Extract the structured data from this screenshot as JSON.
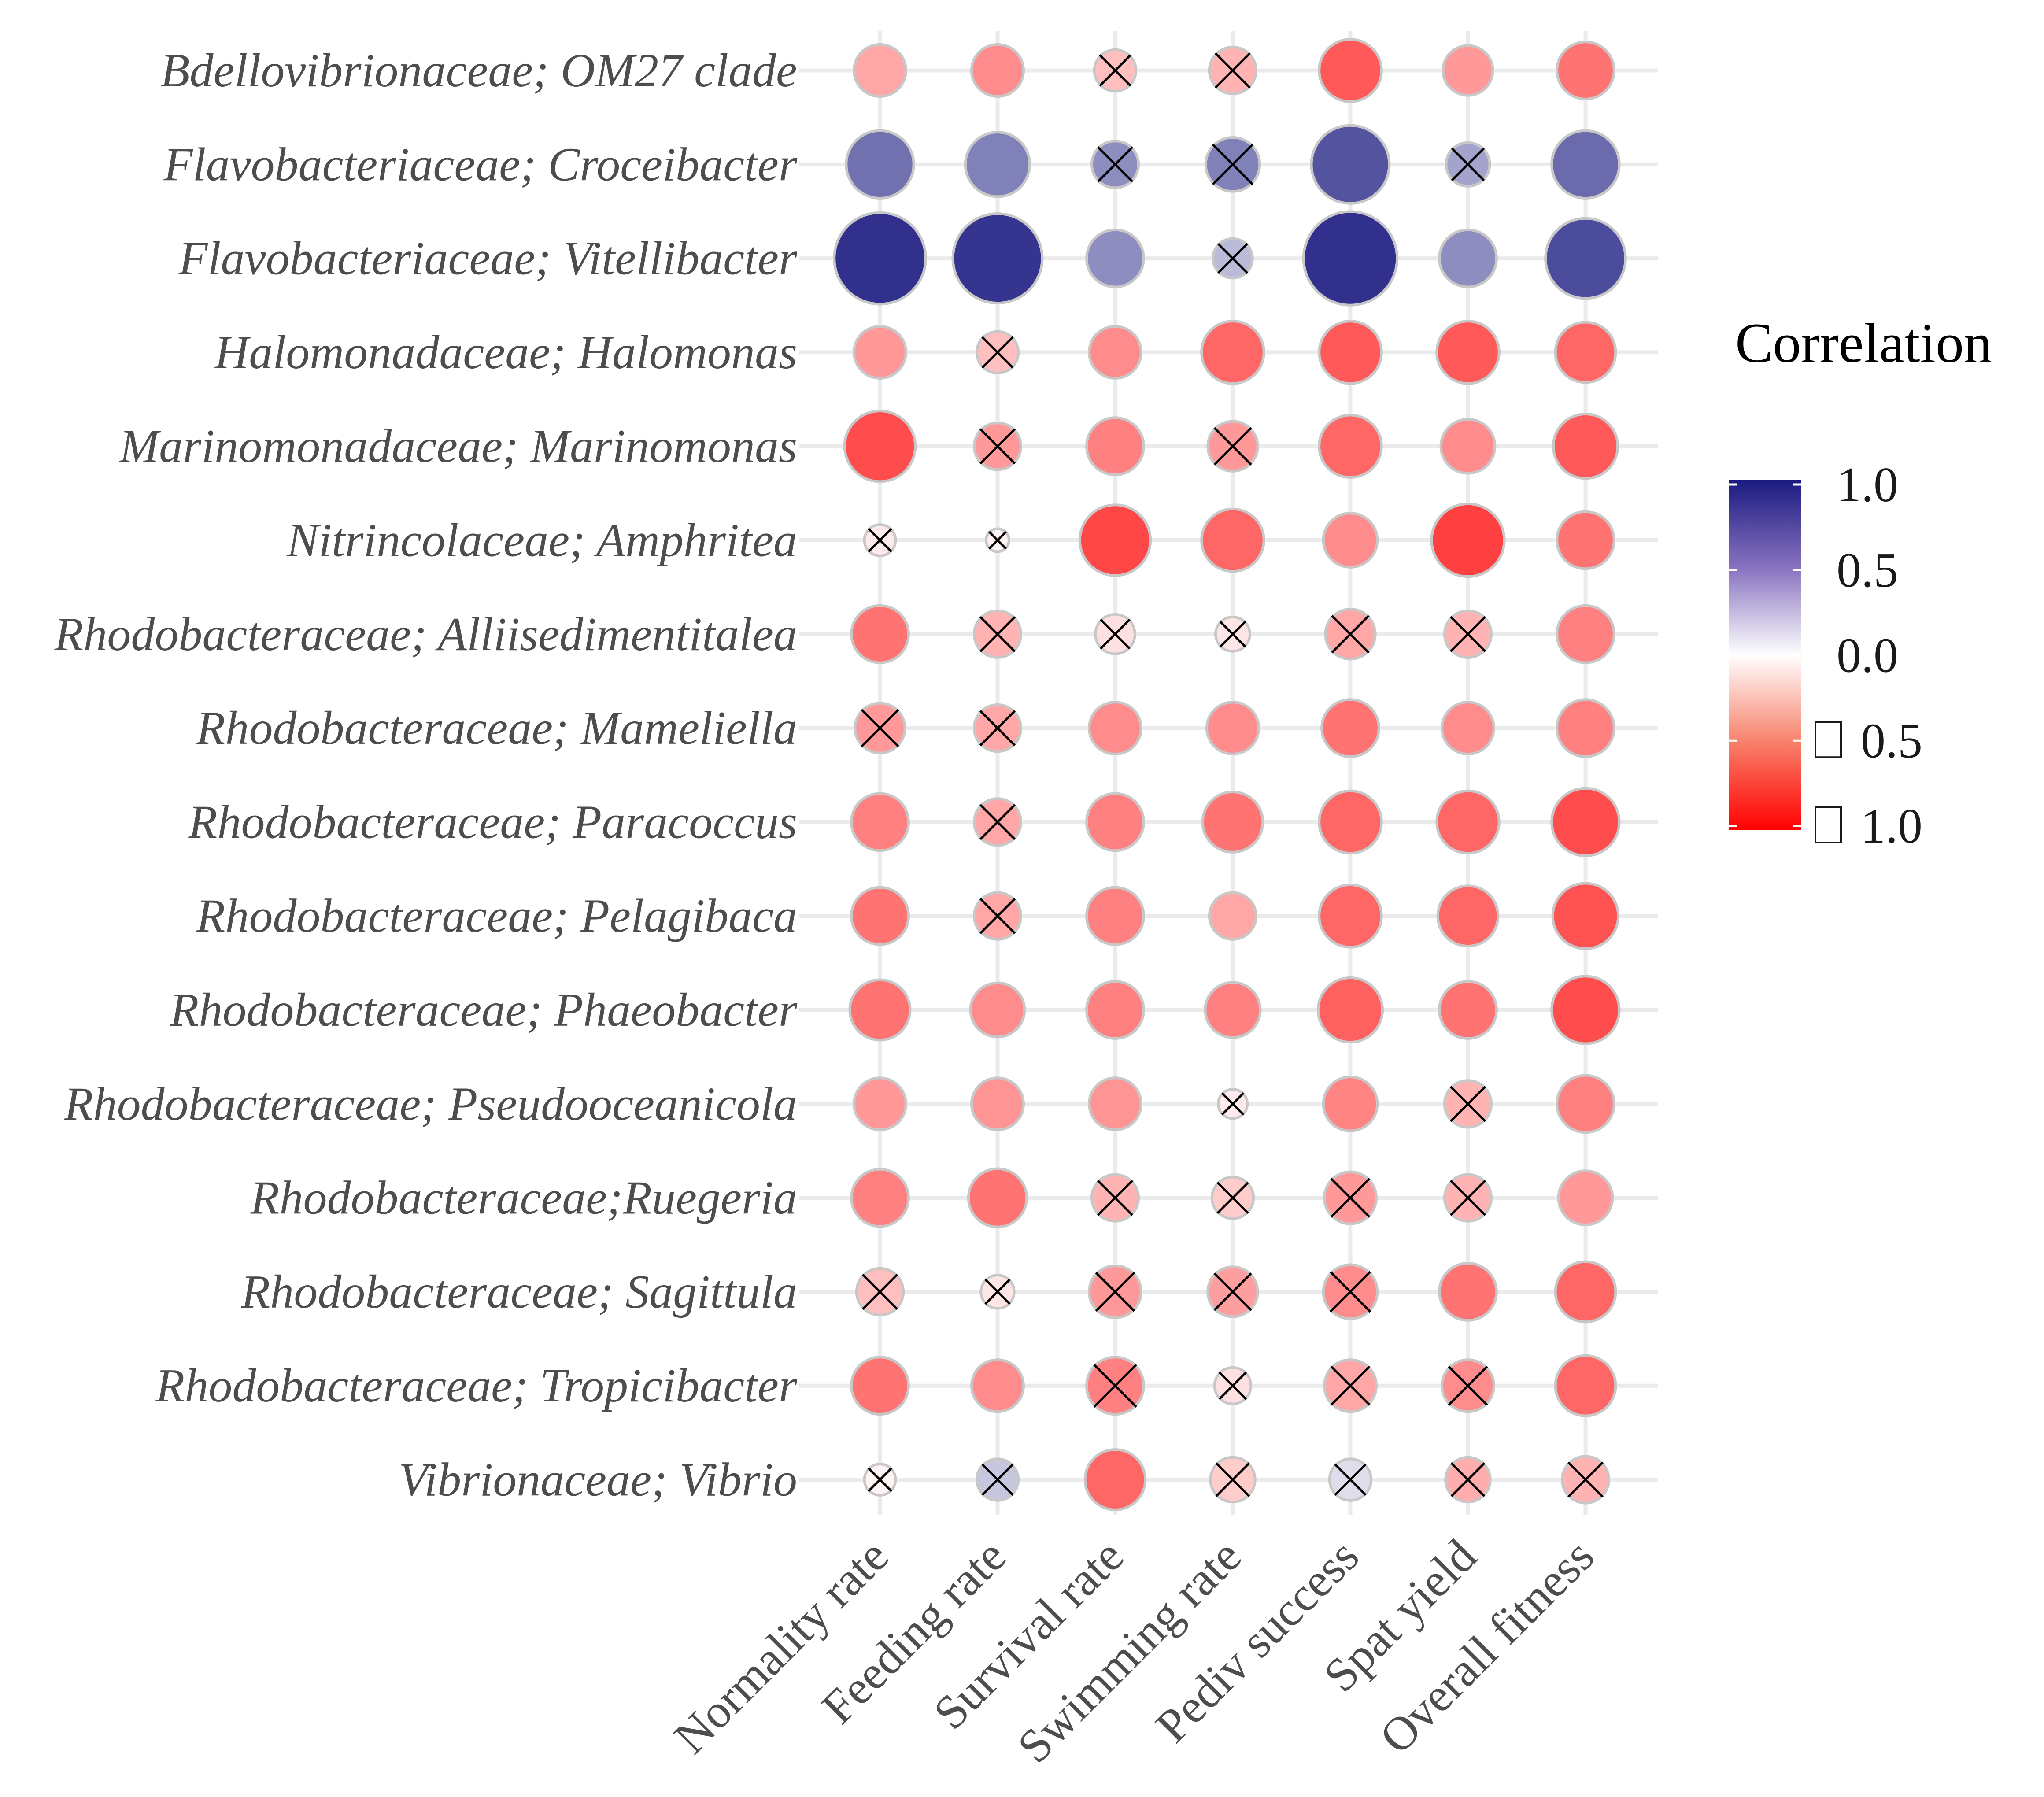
{
  "chart_data": {
    "type": "correlation-dot-matrix",
    "legend_title": "Correlation",
    "color_scale": {
      "domain": [
        -1,
        0,
        1
      ],
      "colors": [
        "#ff0000",
        "#ffffff",
        "#1a1a80"
      ],
      "tick_labels": [
        "1.0",
        "0.5",
        "0.0",
        "□ 0.5",
        "□ 1.0"
      ]
    },
    "rows": [
      "Bdellovibrionaceae; OM27 clade",
      "Flavobacteriaceae; Croceibacter",
      "Flavobacteriaceae; Vitellibacter",
      "Halomonadaceae; Halomonas",
      "Marinomonadaceae; Marinomonas",
      "Nitrincolaceae; Amphritea",
      "Rhodobacteraceae; Alliisedimentitalea",
      "Rhodobacteraceae; Mameliella",
      "Rhodobacteraceae; Paracoccus",
      "Rhodobacteraceae; Pelagibaca",
      "Rhodobacteraceae; Phaeobacter",
      "Rhodobacteraceae; Pseudooceanicola",
      "Rhodobacteraceae;Ruegeria",
      "Rhodobacteraceae; Sagittula",
      "Rhodobacteraceae; Tropicibacter",
      "Vibrionaceae; Vibrio"
    ],
    "columns": [
      "Normality rate",
      "Feeding rate",
      "Survival rate",
      "Swimming rate",
      "Pediv success",
      "Spat yield",
      "Overall fitness"
    ],
    "values": [
      [
        -0.35,
        -0.45,
        -0.25,
        -0.3,
        -0.65,
        -0.4,
        -0.55
      ],
      [
        0.62,
        0.55,
        0.5,
        0.55,
        0.75,
        0.4,
        0.65
      ],
      [
        0.9,
        0.88,
        0.5,
        0.3,
        0.9,
        0.5,
        0.78
      ],
      [
        -0.4,
        -0.25,
        -0.45,
        -0.6,
        -0.65,
        -0.65,
        -0.6
      ],
      [
        -0.7,
        -0.4,
        -0.5,
        -0.4,
        -0.6,
        -0.45,
        -0.65
      ],
      [
        -0.08,
        -0.05,
        -0.72,
        -0.6,
        -0.45,
        -0.75,
        -0.55
      ],
      [
        -0.55,
        -0.3,
        -0.12,
        -0.1,
        -0.35,
        -0.3,
        -0.5
      ],
      [
        -0.4,
        -0.35,
        -0.45,
        -0.45,
        -0.55,
        -0.45,
        -0.5
      ],
      [
        -0.5,
        -0.35,
        -0.5,
        -0.55,
        -0.6,
        -0.6,
        -0.7
      ],
      [
        -0.55,
        -0.35,
        -0.5,
        -0.35,
        -0.6,
        -0.6,
        -0.68
      ],
      [
        -0.55,
        -0.45,
        -0.5,
        -0.5,
        -0.62,
        -0.55,
        -0.7
      ],
      [
        -0.4,
        -0.42,
        -0.42,
        -0.08,
        -0.48,
        -0.3,
        -0.5
      ],
      [
        -0.5,
        -0.55,
        -0.3,
        -0.2,
        -0.4,
        -0.3,
        -0.4
      ],
      [
        -0.25,
        -0.1,
        -0.4,
        -0.38,
        -0.45,
        -0.55,
        -0.6
      ],
      [
        -0.55,
        -0.45,
        -0.5,
        -0.12,
        -0.35,
        -0.45,
        -0.6
      ],
      [
        -0.04,
        0.25,
        -0.6,
        -0.2,
        0.15,
        -0.32,
        -0.3
      ]
    ],
    "sizes": [
      [
        0.5,
        0.5,
        0.4,
        0.45,
        0.6,
        0.48,
        0.55
      ],
      [
        0.65,
        0.62,
        0.45,
        0.52,
        0.75,
        0.42,
        0.65
      ],
      [
        0.88,
        0.86,
        0.55,
        0.38,
        0.9,
        0.55,
        0.77
      ],
      [
        0.5,
        0.4,
        0.5,
        0.6,
        0.6,
        0.6,
        0.58
      ],
      [
        0.68,
        0.45,
        0.55,
        0.48,
        0.6,
        0.52,
        0.62
      ],
      [
        0.3,
        0.22,
        0.68,
        0.6,
        0.52,
        0.7,
        0.55
      ],
      [
        0.55,
        0.45,
        0.38,
        0.33,
        0.48,
        0.45,
        0.55
      ],
      [
        0.48,
        0.45,
        0.5,
        0.5,
        0.55,
        0.5,
        0.55
      ],
      [
        0.55,
        0.45,
        0.55,
        0.58,
        0.6,
        0.6,
        0.65
      ],
      [
        0.55,
        0.45,
        0.55,
        0.45,
        0.6,
        0.58,
        0.63
      ],
      [
        0.58,
        0.52,
        0.55,
        0.53,
        0.62,
        0.55,
        0.65
      ],
      [
        0.5,
        0.5,
        0.5,
        0.28,
        0.52,
        0.45,
        0.55
      ],
      [
        0.55,
        0.56,
        0.45,
        0.4,
        0.5,
        0.45,
        0.52
      ],
      [
        0.45,
        0.32,
        0.5,
        0.48,
        0.52,
        0.55,
        0.58
      ],
      [
        0.55,
        0.5,
        0.55,
        0.35,
        0.5,
        0.5,
        0.58
      ],
      [
        0.3,
        0.4,
        0.58,
        0.43,
        0.4,
        0.43,
        0.45
      ]
    ],
    "not_significant": [
      [
        false,
        false,
        true,
        true,
        false,
        false,
        false
      ],
      [
        false,
        false,
        true,
        true,
        false,
        true,
        false
      ],
      [
        false,
        false,
        false,
        true,
        false,
        false,
        false
      ],
      [
        false,
        true,
        false,
        false,
        false,
        false,
        false
      ],
      [
        false,
        true,
        false,
        true,
        false,
        false,
        false
      ],
      [
        true,
        true,
        false,
        false,
        false,
        false,
        false
      ],
      [
        false,
        true,
        true,
        true,
        true,
        true,
        false
      ],
      [
        true,
        true,
        false,
        false,
        false,
        false,
        false
      ],
      [
        false,
        true,
        false,
        false,
        false,
        false,
        false
      ],
      [
        false,
        true,
        false,
        false,
        false,
        false,
        false
      ],
      [
        false,
        false,
        false,
        false,
        false,
        false,
        false
      ],
      [
        false,
        false,
        false,
        true,
        false,
        true,
        false
      ],
      [
        false,
        false,
        true,
        true,
        true,
        true,
        false
      ],
      [
        true,
        true,
        true,
        true,
        true,
        false,
        false
      ],
      [
        false,
        false,
        true,
        true,
        true,
        true,
        false
      ],
      [
        true,
        true,
        false,
        true,
        true,
        true,
        true
      ]
    ]
  }
}
